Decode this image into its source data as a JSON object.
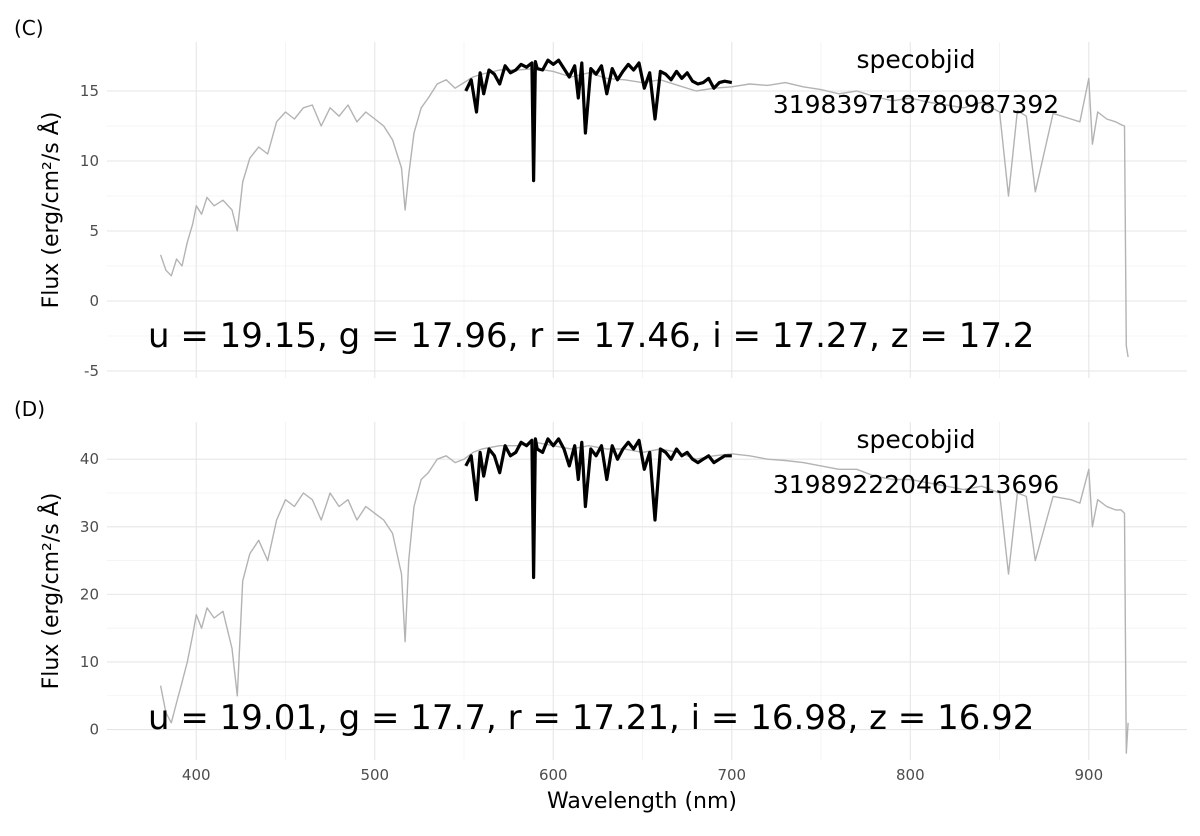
{
  "chart_data": [
    {
      "type": "line",
      "panel_tag": "(C)",
      "ylabel": "Flux (erg/cm²/s Å)",
      "xlim": [
        350,
        955
      ],
      "ylim": [
        -5.5,
        18.5
      ],
      "x_ticks": [
        400,
        500,
        600,
        700,
        800,
        900
      ],
      "y_ticks": [
        -5,
        0,
        5,
        10,
        15
      ],
      "y_tick_labels": [
        "-5",
        "0",
        "5",
        "10",
        "15"
      ],
      "grid": true,
      "annotation_id_label": "specobjid",
      "annotation_id_value": "3198397187809873​92",
      "magnitudes_text": "u = 19.15, g = 17.96, r = 17.46, i = 17.27, z = 17.2",
      "series": [
        {
          "role": "full_spectrum",
          "color": "#b3b3b3",
          "x": [
            380,
            383,
            386,
            389,
            392,
            395,
            398,
            400,
            403,
            406,
            410,
            415,
            420,
            423,
            426,
            430,
            435,
            440,
            445,
            450,
            455,
            460,
            465,
            470,
            475,
            480,
            485,
            490,
            495,
            500,
            505,
            510,
            515,
            517,
            519,
            522,
            526,
            530,
            535,
            540,
            545,
            550,
            555,
            560,
            570,
            580,
            590,
            600,
            610,
            620,
            630,
            640,
            650,
            660,
            670,
            680,
            690,
            700,
            710,
            720,
            730,
            740,
            750,
            760,
            770,
            780,
            790,
            800,
            810,
            820,
            830,
            840,
            850,
            855,
            860,
            865,
            870,
            880,
            890,
            895,
            900,
            902,
            905,
            910,
            915,
            918,
            920,
            921,
            922
          ],
          "y": [
            3.3,
            2.2,
            1.8,
            3.0,
            2.5,
            4.2,
            5.5,
            6.8,
            6.2,
            7.4,
            6.8,
            7.2,
            6.5,
            5.0,
            8.5,
            10.2,
            11.0,
            10.5,
            12.8,
            13.5,
            13.0,
            13.8,
            14.0,
            12.5,
            13.8,
            13.2,
            14.0,
            12.8,
            13.5,
            13.0,
            12.5,
            11.5,
            9.5,
            6.5,
            9.0,
            12.0,
            13.8,
            14.5,
            15.5,
            15.8,
            15.2,
            15.6,
            16.0,
            16.2,
            16.5,
            16.5,
            16.6,
            16.4,
            16.0,
            16.3,
            15.9,
            15.8,
            15.6,
            15.8,
            15.4,
            15.0,
            15.2,
            15.3,
            15.5,
            15.4,
            15.6,
            15.3,
            15.1,
            14.8,
            15.0,
            14.6,
            14.3,
            14.5,
            14.2,
            14.0,
            13.8,
            14.2,
            13.5,
            7.5,
            13.6,
            13.2,
            7.8,
            13.4,
            13.0,
            12.8,
            15.9,
            11.2,
            13.5,
            13.0,
            12.8,
            12.6,
            12.5,
            -3.2,
            -4.0
          ]
        },
        {
          "role": "highlighted_segment",
          "color": "#000000",
          "x": [
            551,
            554,
            557,
            559,
            561,
            564,
            567,
            570,
            573,
            576,
            579,
            582,
            585,
            588,
            589,
            590,
            591,
            594,
            597,
            600,
            603,
            606,
            609,
            612,
            614,
            616,
            618,
            621,
            624,
            627,
            630,
            633,
            636,
            639,
            642,
            645,
            648,
            651,
            654,
            657,
            660,
            663,
            666,
            669,
            672,
            675,
            678,
            681,
            684,
            687,
            690,
            693,
            696,
            700
          ],
          "y": [
            15.0,
            15.8,
            13.5,
            16.3,
            14.8,
            16.5,
            16.2,
            15.5,
            16.8,
            16.3,
            16.5,
            16.9,
            16.7,
            17.0,
            8.6,
            17.1,
            16.6,
            16.5,
            17.2,
            16.9,
            17.2,
            16.6,
            16.0,
            16.8,
            14.5,
            17.0,
            12.0,
            16.6,
            16.2,
            16.8,
            14.8,
            16.6,
            15.8,
            16.4,
            16.9,
            16.5,
            17.0,
            15.2,
            16.3,
            13.0,
            16.4,
            16.2,
            15.8,
            16.4,
            15.9,
            16.3,
            15.7,
            15.5,
            15.6,
            15.9,
            15.2,
            15.6,
            15.7,
            15.6
          ]
        }
      ]
    },
    {
      "type": "line",
      "panel_tag": "(D)",
      "ylabel": "Flux (erg/cm²/s Å)",
      "xlabel": "Wavelength (nm)",
      "xlim": [
        350,
        955
      ],
      "ylim": [
        -4.5,
        45.5
      ],
      "x_ticks": [
        400,
        500,
        600,
        700,
        800,
        900
      ],
      "x_tick_labels": [
        "400",
        "500",
        "600",
        "700",
        "800",
        "900"
      ],
      "y_ticks": [
        0,
        10,
        20,
        30,
        40
      ],
      "y_tick_labels": [
        "0",
        "10",
        "20",
        "30",
        "40"
      ],
      "grid": true,
      "annotation_id_label": "specobjid",
      "annotation_id_value": "3198922204612136​96",
      "magnitudes_text": "u = 19.01, g = 17.7, r = 17.21, i = 16.98, z = 16.92",
      "series": [
        {
          "role": "full_spectrum",
          "color": "#b3b3b3",
          "x": [
            380,
            383,
            386,
            389,
            392,
            395,
            398,
            400,
            403,
            406,
            410,
            415,
            420,
            423,
            426,
            430,
            435,
            440,
            445,
            450,
            455,
            460,
            465,
            470,
            475,
            480,
            485,
            490,
            495,
            500,
            505,
            510,
            515,
            517,
            519,
            522,
            526,
            530,
            535,
            540,
            545,
            550,
            555,
            560,
            570,
            580,
            590,
            600,
            610,
            620,
            630,
            640,
            650,
            660,
            670,
            680,
            690,
            700,
            710,
            720,
            730,
            740,
            750,
            760,
            770,
            780,
            790,
            800,
            810,
            820,
            830,
            840,
            850,
            855,
            860,
            865,
            870,
            880,
            890,
            895,
            900,
            902,
            905,
            910,
            915,
            918,
            920,
            921,
            922
          ],
          "y": [
            6.5,
            2.5,
            1.0,
            4.0,
            7.0,
            10.0,
            14.0,
            17.0,
            15.0,
            18.0,
            16.5,
            17.5,
            12.0,
            5.0,
            22.0,
            26.0,
            28.0,
            25.0,
            31.0,
            34.0,
            33.0,
            35.0,
            34.0,
            31.0,
            35.0,
            33.0,
            34.0,
            31.0,
            33.0,
            32.0,
            31.0,
            29.0,
            23.0,
            13.0,
            25.0,
            33.0,
            37.0,
            38.0,
            40.0,
            40.5,
            39.5,
            40.0,
            41.0,
            41.5,
            42.0,
            42.0,
            42.5,
            42.0,
            41.5,
            42.0,
            41.5,
            41.5,
            41.0,
            41.5,
            41.0,
            40.0,
            40.5,
            40.8,
            40.5,
            40.0,
            39.8,
            39.5,
            39.0,
            38.5,
            38.5,
            37.5,
            37.0,
            37.0,
            36.5,
            36.0,
            35.5,
            36.0,
            35.0,
            23.0,
            35.0,
            34.5,
            25.0,
            34.5,
            34.0,
            33.5,
            38.5,
            30.0,
            34.0,
            33.0,
            32.5,
            32.5,
            32.0,
            -3.5,
            1.0
          ]
        },
        {
          "role": "highlighted_segment",
          "color": "#000000",
          "x": [
            551,
            554,
            557,
            559,
            561,
            564,
            567,
            570,
            573,
            576,
            579,
            582,
            585,
            588,
            589,
            590,
            591,
            594,
            597,
            600,
            603,
            606,
            609,
            612,
            614,
            616,
            618,
            621,
            624,
            627,
            630,
            633,
            636,
            639,
            642,
            645,
            648,
            651,
            654,
            657,
            660,
            663,
            666,
            669,
            672,
            675,
            678,
            681,
            684,
            687,
            690,
            693,
            696,
            700
          ],
          "y": [
            39.0,
            40.5,
            34.0,
            41.0,
            37.5,
            41.5,
            40.5,
            38.0,
            42.0,
            40.5,
            41.0,
            42.5,
            42.0,
            42.8,
            22.5,
            43.0,
            41.5,
            41.0,
            43.0,
            42.0,
            43.0,
            41.5,
            39.0,
            42.0,
            37.0,
            42.5,
            33.0,
            41.5,
            40.5,
            42.0,
            37.0,
            42.0,
            40.0,
            41.5,
            42.5,
            41.5,
            42.8,
            38.5,
            41.0,
            31.0,
            41.5,
            41.0,
            40.0,
            41.5,
            40.5,
            41.0,
            40.0,
            39.5,
            40.0,
            40.5,
            39.5,
            40.0,
            40.5,
            40.5
          ]
        }
      ]
    }
  ]
}
